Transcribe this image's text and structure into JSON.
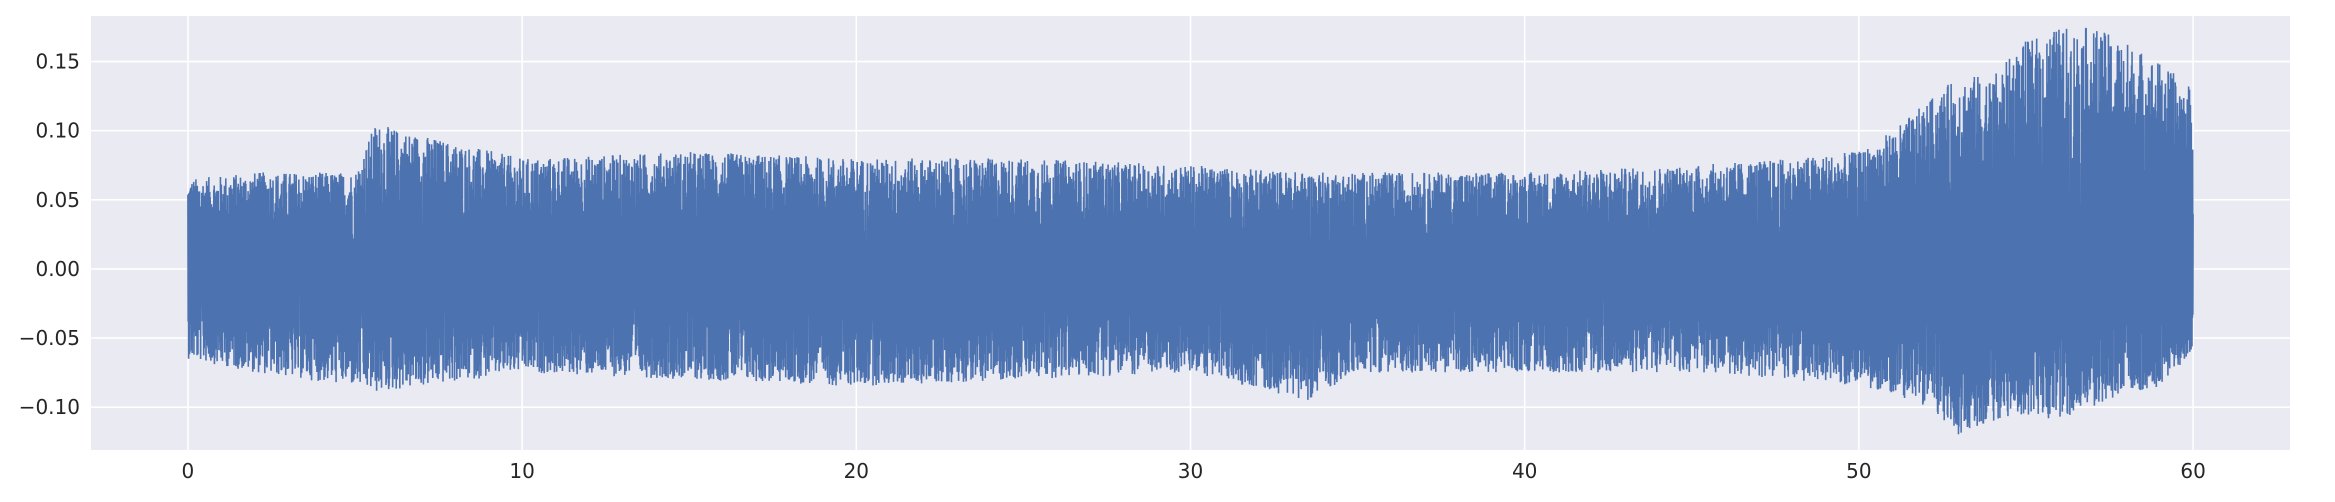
{
  "chart_data": {
    "type": "line",
    "title": "",
    "xlabel": "",
    "ylabel": "",
    "xlim": [
      -2.9,
      62.9
    ],
    "ylim": [
      -0.131,
      0.183
    ],
    "grid": true,
    "legend": "none",
    "x_ticks": [
      0,
      10,
      20,
      30,
      40,
      50,
      60
    ],
    "x_tick_labels": [
      "0",
      "10",
      "20",
      "30",
      "40",
      "50",
      "60"
    ],
    "y_ticks": [
      -0.1,
      -0.05,
      0.0,
      0.05,
      0.1,
      0.15
    ],
    "y_tick_labels": [
      "−0.10",
      "−0.05",
      "0.00",
      "0.05",
      "0.10",
      "0.15"
    ],
    "series": [
      {
        "color": "#4c72b0",
        "x_range": [
          0,
          60
        ],
        "envelope": {
          "x": [
            0,
            2,
            5,
            5.6,
            10,
            15,
            20,
            25,
            30,
            33.5,
            35,
            40,
            45,
            48,
            50,
            51,
            52,
            53,
            54,
            55,
            56,
            57,
            58,
            59,
            60
          ],
          "upper": [
            0.065,
            0.07,
            0.07,
            0.105,
            0.08,
            0.085,
            0.08,
            0.08,
            0.075,
            0.07,
            0.07,
            0.07,
            0.075,
            0.08,
            0.085,
            0.1,
            0.12,
            0.14,
            0.14,
            0.165,
            0.175,
            0.175,
            0.165,
            0.15,
            0.13
          ],
          "lower": [
            -0.065,
            -0.075,
            -0.085,
            -0.09,
            -0.075,
            -0.08,
            -0.085,
            -0.08,
            -0.075,
            -0.095,
            -0.075,
            -0.075,
            -0.075,
            -0.08,
            -0.085,
            -0.09,
            -0.1,
            -0.12,
            -0.11,
            -0.105,
            -0.11,
            -0.1,
            -0.09,
            -0.085,
            -0.06
          ]
        }
      }
    ]
  }
}
